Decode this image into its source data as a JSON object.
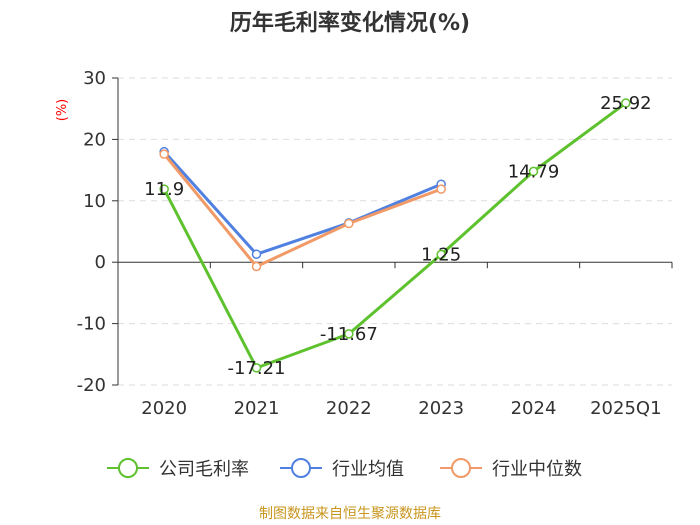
{
  "chart_data": {
    "type": "line",
    "title": "历年毛利率变化情况(%)",
    "ylabel": "(%)",
    "categories": [
      "2020",
      "2021",
      "2022",
      "2023",
      "2024",
      "2025Q1"
    ],
    "yticks": [
      "30",
      "20",
      "10",
      "0",
      "-10",
      "-20"
    ],
    "ylim": [
      -20,
      30
    ],
    "grid": true,
    "legend_position": "bottom",
    "series": [
      {
        "name": "公司毛利率",
        "color": "#5ec12e",
        "values": [
          11.9,
          -17.21,
          -11.67,
          1.25,
          14.79,
          25.92
        ],
        "labels": [
          "11.9",
          "-17.21",
          "-11.67",
          "1.25",
          "14.79",
          "25.92"
        ]
      },
      {
        "name": "行业均值",
        "color": "#5181e0",
        "values": [
          18.0,
          1.3,
          6.4,
          12.7,
          null,
          null
        ]
      },
      {
        "name": "行业中位数",
        "color": "#f19a67",
        "values": [
          17.6,
          -0.7,
          6.3,
          11.9,
          null,
          null
        ]
      }
    ]
  },
  "source": "制图数据来自恒生聚源数据库"
}
